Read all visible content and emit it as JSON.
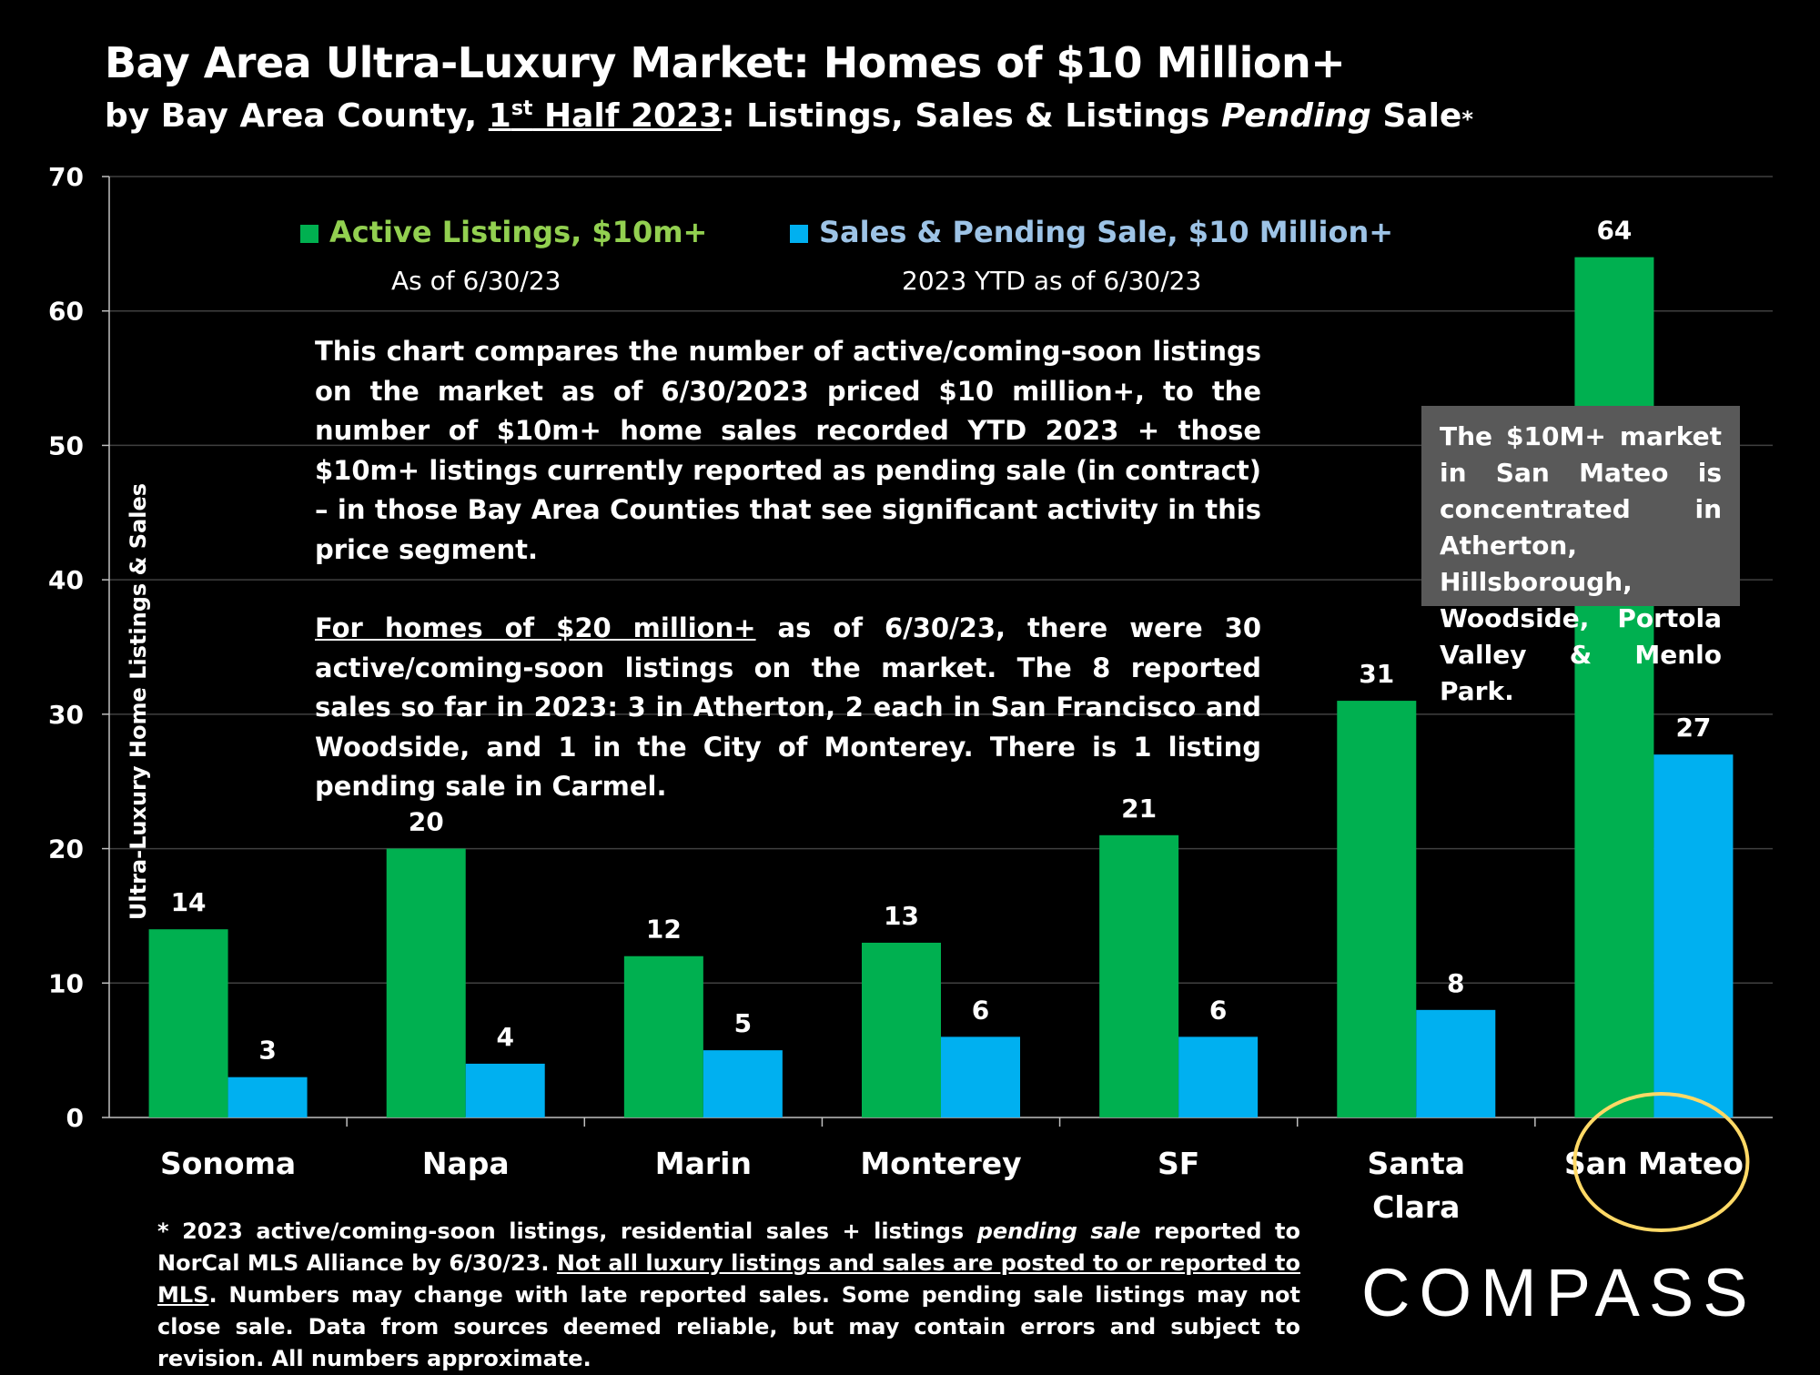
{
  "title": "Bay Area Ultra-Luxury Market: Homes of $10 Million+",
  "subtitle": {
    "prefix": "by Bay Area County, ",
    "half_num": "1",
    "half_sup": "st",
    "half_rest": " Half 2023",
    "middle": ":  Listings, Sales & Listings ",
    "italic": "Pending",
    "suffix": " Sale",
    "star": "*"
  },
  "legend": {
    "active_label": "Active Listings, $10m+",
    "active_sub": "As of 6/30/23",
    "sales_label": "Sales & Pending Sale, $10 Million+",
    "sales_sub": "2023 YTD as of 6/30/23"
  },
  "note": {
    "p1": "This chart compares the number of active/coming-soon listings on the market as of 6/30/2023 priced $10 million+, to the number of $10m+ home sales recorded YTD 2023 + those $10m+ listings currently reported as pending sale (in contract) – in those Bay Area Counties that see significant activity in this price segment.",
    "p2_underlined": "For homes of $20 million+",
    "p2_rest": " as of 6/30/23, there were 30 active/coming-soon listings on the market. The 8 reported sales so far in 2023: 3 in Atherton, 2 each in San Francisco and Woodside, and 1 in the City of Monterey. There is 1 listing pending sale in Carmel."
  },
  "callout": "The $10M+ market in San Mateo is concentrated in Atherton, Hillsborough, Woodside, Portola Valley & Menlo Park.",
  "footnote": {
    "part1": "* 2023 active/coming-soon listings, residential sales + listings ",
    "italic": "pending sale",
    "part2": " reported to NorCal MLS Alliance by 6/30/23. ",
    "underlined": "Not all luxury listings and sales are posted to or reported to MLS",
    "part3": ". Numbers may change with late reported sales. Some pending sale listings may not close sale. Data from sources deemed reliable, but may contain errors and subject to revision. All numbers approximate."
  },
  "logo": "COMPASS",
  "colors": {
    "active": "#00b050",
    "sales": "#00b0f0",
    "sales_legend_text": "#9dc3e6",
    "active_legend_text": "#92d050",
    "highlight": "#ffd966",
    "grid": "#404040"
  },
  "chart_data": {
    "type": "bar",
    "title": "Bay Area Ultra-Luxury Market: Homes of $10 Million+",
    "ylabel": "Ultra-Luxury Home Listings & Sales",
    "xlabel": "",
    "ylim": [
      0,
      70
    ],
    "yticks": [
      0,
      10,
      20,
      30,
      40,
      50,
      60,
      70
    ],
    "grid": true,
    "legend_position": "top",
    "categories": [
      [
        "Sonoma"
      ],
      [
        "Napa"
      ],
      [
        "Marin"
      ],
      [
        "Monterey"
      ],
      [
        "SF"
      ],
      [
        "Santa",
        "Clara"
      ],
      [
        "San Mateo"
      ]
    ],
    "series": [
      {
        "name": "Active Listings, $10m+",
        "values": [
          14,
          20,
          12,
          13,
          21,
          31,
          64
        ]
      },
      {
        "name": "Sales & Pending Sale, $10 Million+",
        "values": [
          3,
          4,
          5,
          6,
          6,
          8,
          27
        ]
      }
    ],
    "highlighted_category": "San Mateo"
  }
}
